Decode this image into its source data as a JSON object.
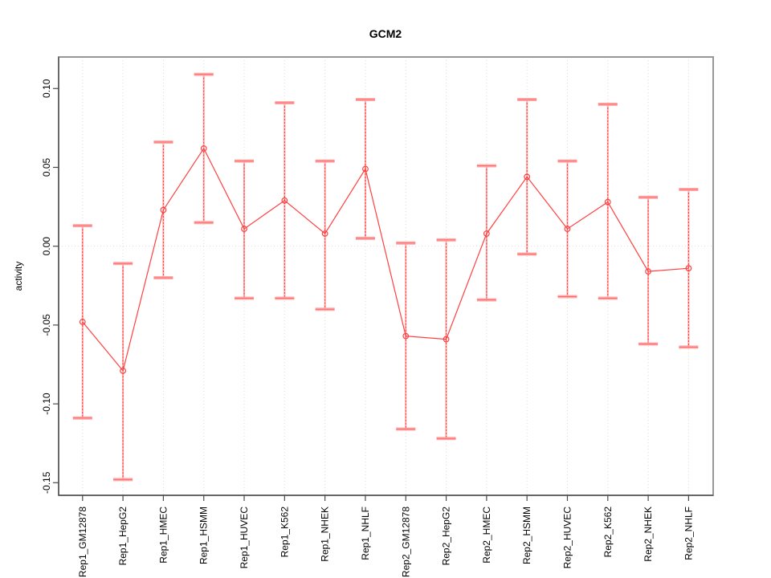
{
  "chart_data": {
    "type": "line",
    "title": "GCM2",
    "xlabel": "",
    "ylabel": "activity",
    "ylim": [
      -0.158,
      0.12
    ],
    "yticks": [
      0.1,
      0.05,
      0.0,
      -0.05,
      -0.1,
      -0.15
    ],
    "ytick_labels": [
      "0.10",
      "0.05",
      "0.00",
      "-0.05",
      "-0.10",
      "-0.15"
    ],
    "grid": {
      "vertical_dotted_per_category": true,
      "horizontal_dotted_at_zero": true
    },
    "legend": "none",
    "marker": "open-circle",
    "error_bars": "dashed vertical line with flat caps",
    "categories": [
      "Rep1_GM12878",
      "Rep1_HepG2",
      "Rep1_HMEC",
      "Rep1_HSMM",
      "Rep1_HUVEC",
      "Rep1_K562",
      "Rep1_NHEK",
      "Rep1_NHLF",
      "Rep2_GM12878",
      "Rep2_HepG2",
      "Rep2_HMEC",
      "Rep2_HSMM",
      "Rep2_HUVEC",
      "Rep2_K562",
      "Rep2_NHEK",
      "Rep2_NHLF"
    ],
    "series": [
      {
        "name": "activity",
        "values": [
          -0.048,
          -0.079,
          0.023,
          0.062,
          0.011,
          0.029,
          0.008,
          0.049,
          -0.057,
          -0.059,
          0.008,
          0.044,
          0.011,
          0.028,
          -0.016,
          -0.014
        ],
        "lower": [
          -0.109,
          -0.148,
          -0.02,
          0.015,
          -0.033,
          -0.033,
          -0.04,
          0.005,
          -0.116,
          -0.122,
          -0.034,
          -0.005,
          -0.032,
          -0.033,
          -0.062,
          -0.064
        ],
        "upper": [
          0.013,
          -0.011,
          0.066,
          0.109,
          0.054,
          0.091,
          0.054,
          0.093,
          0.002,
          0.004,
          0.051,
          0.093,
          0.054,
          0.09,
          0.031,
          0.036
        ]
      }
    ],
    "colors": {
      "point_line": "#ff4040",
      "error_bar_light": "#ffa8a8",
      "error_bar_dash": "#ff3434",
      "grid": "#dcdcdc",
      "frame": "#979797",
      "axis_dark": "#4a4a4a",
      "text": "#000000"
    }
  }
}
